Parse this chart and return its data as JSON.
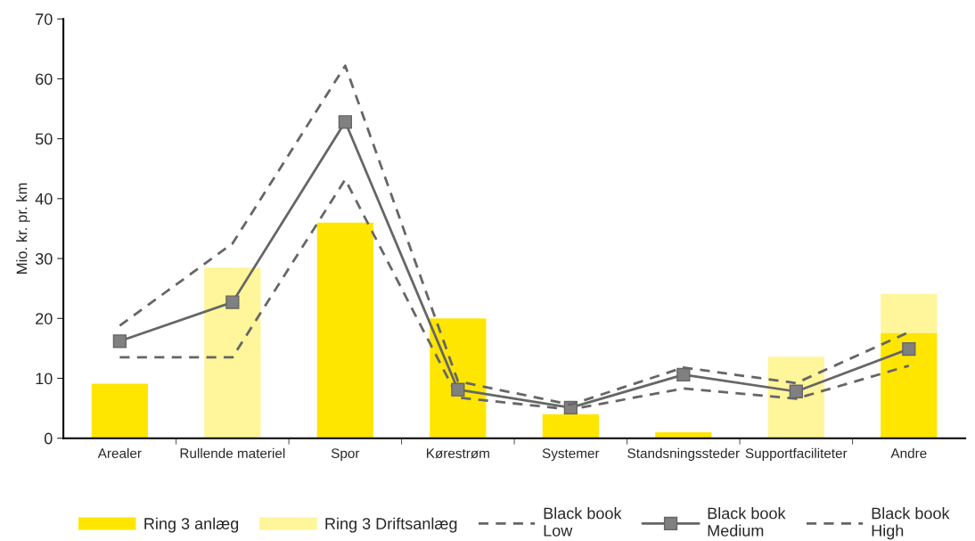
{
  "chart_data": {
    "type": "bar",
    "ylabel": "Mio. kr. pr. km",
    "categories": [
      "Arealer",
      "Rullende materiel",
      "Spor",
      "Kørestrøm",
      "Systemer",
      "Standsningssteder",
      "Supportfaciliteter",
      "Andre"
    ],
    "stacked": true,
    "series": [
      {
        "name": "Ring 3 anlæg",
        "color": "#ffe600",
        "values": [
          9.1,
          null,
          36,
          20,
          4.0,
          1.0,
          null,
          17.6
        ]
      },
      {
        "name": "Ring 3 Driftsanlæg",
        "color": "#fff59a",
        "values": [
          null,
          28.5,
          null,
          null,
          null,
          null,
          13.6,
          6.5
        ]
      },
      {
        "name": "Black book\nLow",
        "type": "line",
        "color": "#666666",
        "line_style": "dashed",
        "marker": "none",
        "values": [
          13.5,
          13.5,
          43.2,
          6.8,
          4.8,
          8.3,
          6.6,
          12.1
        ]
      },
      {
        "name": "Black book\nMedium",
        "type": "line",
        "color": "#666666",
        "line_style": "solid",
        "marker": "square",
        "values": [
          16.2,
          22.7,
          52.8,
          8.1,
          5.1,
          10.6,
          7.8,
          14.9
        ]
      },
      {
        "name": "Black book\nHigh",
        "type": "line",
        "color": "#666666",
        "line_style": "dashed",
        "marker": "none",
        "values": [
          18.8,
          32.5,
          62.2,
          9.5,
          5.6,
          11.8,
          9.2,
          17.7
        ]
      }
    ],
    "ylim": [
      0,
      70
    ],
    "yticks": [
      0,
      10,
      20,
      30,
      40,
      50,
      60,
      70
    ],
    "grid": false,
    "legend": "bottom"
  }
}
